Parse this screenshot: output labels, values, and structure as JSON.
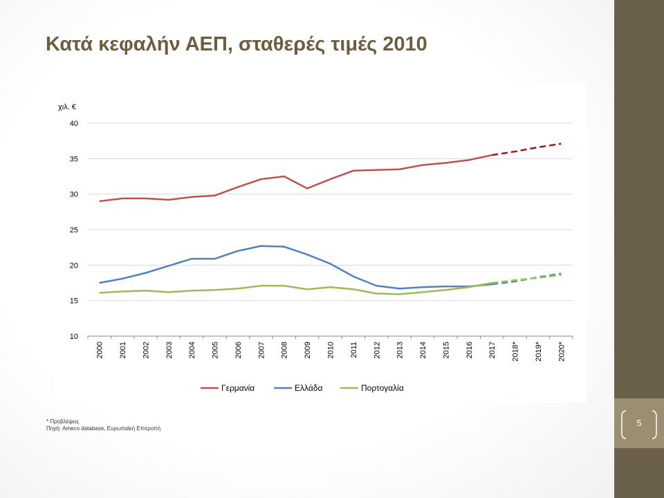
{
  "slide": {
    "title": "Κατά κεφαλήν ΑΕΠ, σταθερές τιμές 2010",
    "footnote_forecast": "* Προβλέψεις",
    "footnote_source": "Πηγή: Ameco database, Ευρωπαϊκή Επιτροπή",
    "page_number": "5",
    "colors": {
      "band": "#6b604a",
      "page_box": "#9b8f72",
      "title": "#6b5d40"
    }
  },
  "chart_data": {
    "type": "line",
    "title": "",
    "ylabel": "χιλ. €",
    "xlabel": "",
    "ylim": [
      10,
      40
    ],
    "yticks": [
      10,
      15,
      20,
      25,
      30,
      35,
      40
    ],
    "grid": true,
    "legend_position": "bottom",
    "categories": [
      "2000",
      "2001",
      "2002",
      "2003",
      "2004",
      "2005",
      "2006",
      "2007",
      "2008",
      "2009",
      "2010",
      "2011",
      "2012",
      "2013",
      "2014",
      "2015",
      "2016",
      "2017",
      "2018*",
      "2019*",
      "2020*"
    ],
    "forecast_start_index": 17,
    "series": [
      {
        "name": "Γερμανία",
        "color": "#c0504d",
        "forecast_color": "#a50f15",
        "values": [
          29.0,
          29.4,
          29.4,
          29.2,
          29.6,
          29.8,
          31.0,
          32.1,
          32.5,
          30.8,
          32.1,
          33.3,
          33.4,
          33.5,
          34.1,
          34.4,
          34.8,
          35.5,
          36.0,
          36.6,
          37.1
        ]
      },
      {
        "name": "Ελλάδα",
        "color": "#4f81bd",
        "forecast_color": "#4f81bd",
        "values": [
          17.5,
          18.1,
          18.9,
          19.9,
          20.9,
          20.9,
          22.0,
          22.7,
          22.6,
          21.5,
          20.2,
          18.4,
          17.1,
          16.7,
          16.9,
          17.0,
          17.0,
          17.3,
          17.7,
          18.3,
          18.8
        ]
      },
      {
        "name": "Πορτογαλία",
        "color": "#9bbb59",
        "forecast_color": "#92d050",
        "values": [
          16.1,
          16.3,
          16.4,
          16.2,
          16.4,
          16.5,
          16.7,
          17.1,
          17.1,
          16.6,
          16.9,
          16.6,
          16.0,
          15.9,
          16.2,
          16.5,
          16.9,
          17.5,
          17.9,
          18.2,
          18.6
        ]
      }
    ]
  }
}
